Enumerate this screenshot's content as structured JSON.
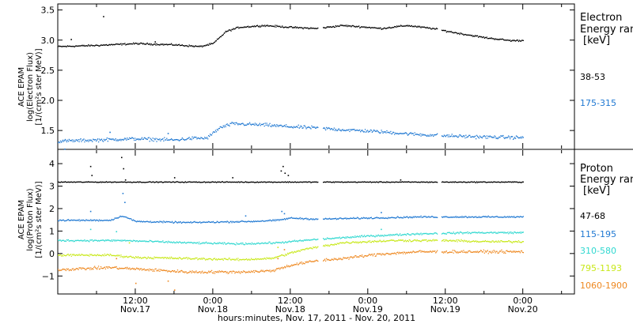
{
  "chart_data": [
    {
      "type": "scatter",
      "id": "electron",
      "ylabel_lines": [
        "ACE EPAM",
        "log(Electron Flux)",
        "[1/(cm²s ster MeV)]"
      ],
      "legend_title": [
        "Electron",
        "Energy ran"
      ],
      "legend_unit": "[keV]",
      "ylim": [
        1.2,
        3.6
      ],
      "y_ticks": [
        {
          "value": 1.5,
          "label": "1.5"
        },
        {
          "value": 2.0,
          "label": "2.0"
        },
        {
          "value": 2.5,
          "label": "2.5"
        },
        {
          "value": 3.0,
          "label": "3.0"
        },
        {
          "value": 3.5,
          "label": "3.5"
        }
      ],
      "series": [
        {
          "name": "38-53",
          "color": "#000000",
          "noise": 0.02,
          "points": [
            [
              0,
              2.9
            ],
            [
              6,
              2.92
            ],
            [
              12,
              2.95
            ],
            [
              18,
              2.93
            ],
            [
              22,
              2.9
            ],
            [
              24,
              2.95
            ],
            [
              26,
              3.15
            ],
            [
              28,
              3.22
            ],
            [
              32,
              3.25
            ],
            [
              36,
              3.22
            ],
            [
              40,
              3.2
            ],
            [
              44,
              3.25
            ],
            [
              48,
              3.22
            ],
            [
              50,
              3.2
            ],
            [
              54,
              3.25
            ],
            [
              58,
              3.2
            ],
            [
              62,
              3.12
            ],
            [
              66,
              3.05
            ],
            [
              70,
              3.0
            ],
            [
              72,
              3.0
            ]
          ],
          "extra": [
            [
              7,
              3.4
            ],
            [
              2,
              3.02
            ],
            [
              15,
              2.98
            ]
          ]
        },
        {
          "name": "175-315",
          "color": "#1f78d2",
          "noise": 0.04,
          "points": [
            [
              0,
              1.33
            ],
            [
              6,
              1.35
            ],
            [
              12,
              1.37
            ],
            [
              18,
              1.35
            ],
            [
              21,
              1.38
            ],
            [
              23,
              1.38
            ],
            [
              25,
              1.55
            ],
            [
              27,
              1.62
            ],
            [
              32,
              1.6
            ],
            [
              36,
              1.57
            ],
            [
              40,
              1.55
            ],
            [
              44,
              1.52
            ],
            [
              48,
              1.5
            ],
            [
              52,
              1.47
            ],
            [
              56,
              1.44
            ],
            [
              60,
              1.42
            ],
            [
              66,
              1.4
            ],
            [
              72,
              1.39
            ]
          ],
          "extra": [
            [
              1,
              1.2
            ],
            [
              8,
              1.48
            ],
            [
              17,
              1.46
            ]
          ]
        }
      ]
    },
    {
      "type": "scatter",
      "id": "proton",
      "ylabel_lines": [
        "ACE EPAM",
        "log(Proton Flux)",
        "[1/(cm²s ster MeV)]"
      ],
      "legend_title": [
        "Proton",
        "Energy ran"
      ],
      "legend_unit": "[keV]",
      "ylim": [
        -1.8,
        4.6
      ],
      "y_ticks": [
        {
          "value": -1,
          "label": "−1"
        },
        {
          "value": 0,
          "label": "0"
        },
        {
          "value": 1,
          "label": "1"
        },
        {
          "value": 2,
          "label": "2"
        },
        {
          "value": 3,
          "label": "3"
        },
        {
          "value": 4,
          "label": "4"
        }
      ],
      "series": [
        {
          "name": "47-68",
          "color": "#000000",
          "noise": 0.03,
          "points": [
            [
              0,
              3.2
            ],
            [
              72,
              3.2
            ]
          ],
          "extra": [
            [
              5,
              3.9
            ],
            [
              5.2,
              3.5
            ],
            [
              9.8,
              4.3
            ],
            [
              10.1,
              3.8
            ],
            [
              10.4,
              3.3
            ],
            [
              27,
              3.4
            ],
            [
              34.5,
              3.7
            ],
            [
              34.8,
              3.9
            ],
            [
              35.1,
              3.6
            ],
            [
              35.6,
              3.5
            ],
            [
              18,
              3.4
            ],
            [
              53,
              3.3
            ]
          ]
        },
        {
          "name": "115-195",
          "color": "#1f78d2",
          "noise": 0.05,
          "points": [
            [
              0,
              1.5
            ],
            [
              8,
              1.5
            ],
            [
              10,
              1.7
            ],
            [
              12,
              1.45
            ],
            [
              20,
              1.4
            ],
            [
              30,
              1.45
            ],
            [
              34,
              1.5
            ],
            [
              36,
              1.6
            ],
            [
              40,
              1.55
            ],
            [
              48,
              1.6
            ],
            [
              56,
              1.65
            ],
            [
              64,
              1.65
            ],
            [
              72,
              1.65
            ]
          ],
          "extra": [
            [
              5,
              1.9
            ],
            [
              10,
              2.7
            ],
            [
              10.3,
              2.3
            ],
            [
              34.6,
              1.9
            ],
            [
              35,
              1.8
            ],
            [
              29,
              1.7
            ],
            [
              50,
              1.85
            ]
          ]
        },
        {
          "name": "310-580",
          "color": "#30d8d0",
          "noise": 0.06,
          "points": [
            [
              0,
              0.6
            ],
            [
              10,
              0.6
            ],
            [
              20,
              0.5
            ],
            [
              28,
              0.45
            ],
            [
              34,
              0.5
            ],
            [
              40,
              0.65
            ],
            [
              48,
              0.8
            ],
            [
              56,
              0.9
            ],
            [
              64,
              0.95
            ],
            [
              72,
              0.95
            ]
          ],
          "extra": [
            [
              5,
              1.1
            ],
            [
              9,
              1.0
            ],
            [
              50,
              1.1
            ]
          ]
        },
        {
          "name": "795-1193",
          "color": "#c8e81a",
          "noise": 0.07,
          "points": [
            [
              0,
              -0.05
            ],
            [
              8,
              -0.05
            ],
            [
              12,
              -0.15
            ],
            [
              20,
              -0.2
            ],
            [
              28,
              -0.25
            ],
            [
              33,
              -0.2
            ],
            [
              38,
              0.2
            ],
            [
              44,
              0.5
            ],
            [
              52,
              0.6
            ],
            [
              60,
              0.6
            ],
            [
              66,
              0.55
            ],
            [
              72,
              0.55
            ]
          ],
          "extra": [
            [
              34,
              0.3
            ],
            [
              11,
              0.5
            ]
          ]
        },
        {
          "name": "1060-1900",
          "color": "#ee8820",
          "noise": 0.09,
          "points": [
            [
              0,
              -0.7
            ],
            [
              8,
              -0.6
            ],
            [
              14,
              -0.7
            ],
            [
              20,
              -0.8
            ],
            [
              28,
              -0.8
            ],
            [
              33,
              -0.75
            ],
            [
              36,
              -0.5
            ],
            [
              40,
              -0.3
            ],
            [
              44,
              -0.2
            ],
            [
              50,
              0.0
            ],
            [
              56,
              0.1
            ],
            [
              62,
              0.1
            ],
            [
              68,
              0.1
            ],
            [
              72,
              0.1
            ]
          ],
          "extra": [
            [
              12,
              -1.3
            ],
            [
              18,
              -1.6
            ],
            [
              17,
              -1.2
            ],
            [
              9,
              -0.2
            ],
            [
              34,
              -0.2
            ],
            [
              35,
              0.2
            ]
          ]
        }
      ]
    }
  ],
  "time_axis": {
    "xlim_hours": [
      0,
      80
    ],
    "title": "hours:minutes, Nov. 17, 2011 - Nov. 20, 2011",
    "ticks": [
      {
        "hour": 6,
        "major": false
      },
      {
        "hour": 12,
        "major": true,
        "label1": "12:00",
        "label2": "Nov.17"
      },
      {
        "hour": 18,
        "major": false
      },
      {
        "hour": 24,
        "major": true,
        "label1": "0:00",
        "label2": "Nov.18"
      },
      {
        "hour": 30,
        "major": false
      },
      {
        "hour": 36,
        "major": true,
        "label1": "12:00",
        "label2": "Nov.18"
      },
      {
        "hour": 42,
        "major": false
      },
      {
        "hour": 48,
        "major": true,
        "label1": "0:00",
        "label2": "Nov.19"
      },
      {
        "hour": 54,
        "major": false
      },
      {
        "hour": 60,
        "major": true,
        "label1": "12:00",
        "label2": "Nov.19"
      },
      {
        "hour": 66,
        "major": false
      },
      {
        "hour": 72,
        "major": true,
        "label1": "0:00",
        "label2": "Nov.20"
      },
      {
        "hour": 78,
        "major": false
      }
    ]
  }
}
